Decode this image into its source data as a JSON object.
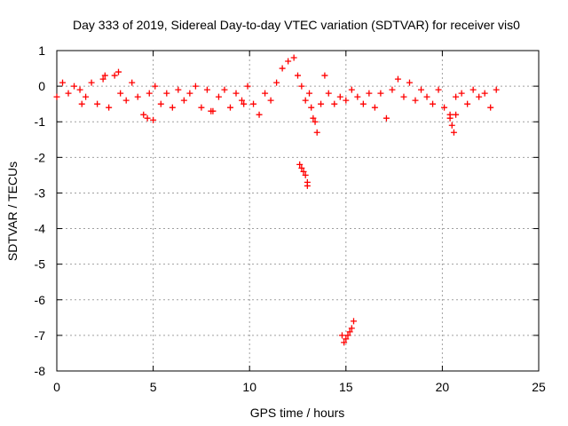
{
  "chart_data": {
    "type": "scatter",
    "title": "Day 333 of 2019, Sidereal Day-to-day VTEC variation (SDTVAR) for receiver vis0",
    "xlabel": "GPS time / hours",
    "ylabel": "SDTVAR / TECUs",
    "xlim": [
      0,
      25
    ],
    "ylim": [
      -8,
      1
    ],
    "xticks": [
      0,
      5,
      10,
      15,
      20,
      25
    ],
    "xtick_labels": [
      "0",
      "5",
      "10",
      "15",
      "20",
      "25"
    ],
    "yticks": [
      1,
      0,
      -1,
      -2,
      -3,
      -4,
      -5,
      -6,
      -7,
      -8
    ],
    "ytick_labels": [
      "1",
      "0",
      "-1",
      "-2",
      "-3",
      "-4",
      "-5",
      "-6",
      "-7",
      "-8"
    ],
    "grid": true,
    "marker": "+",
    "color": "#ff0000",
    "series": [
      {
        "name": "SDTVAR",
        "x": [
          0.0,
          0.3,
          0.6,
          0.9,
          1.2,
          1.5,
          1.8,
          2.1,
          2.4,
          2.7,
          3.0,
          3.3,
          3.6,
          3.9,
          4.2,
          4.5,
          4.8,
          5.1,
          5.4,
          5.7,
          6.0,
          6.3,
          6.6,
          6.9,
          7.2,
          7.5,
          7.8,
          8.1,
          8.4,
          8.7,
          9.0,
          9.3,
          9.6,
          9.9,
          10.2,
          10.5,
          10.8,
          11.1,
          11.4,
          11.7,
          12.0,
          12.3,
          12.5,
          12.7,
          12.9,
          13.1,
          13.3,
          13.5,
          13.7,
          13.9,
          14.1,
          14.4,
          14.7,
          15.0,
          15.3,
          15.6,
          15.9,
          16.2,
          16.5,
          16.8,
          17.1,
          17.4,
          17.7,
          18.0,
          18.3,
          18.6,
          18.9,
          19.2,
          19.5,
          19.8,
          20.1,
          20.4,
          20.7,
          21.0,
          21.3,
          21.6,
          21.9,
          22.2,
          22.5,
          22.8,
          1.3,
          2.5,
          4.7,
          5.0,
          3.2,
          8.0,
          9.7,
          12.6,
          12.7,
          12.8,
          12.9,
          13.0,
          13.0,
          13.2,
          13.4,
          14.8,
          14.9,
          15.0,
          15.1,
          15.2,
          15.3,
          15.4,
          20.4,
          20.5,
          20.6,
          20.7
        ],
        "y": [
          -0.3,
          0.1,
          -0.2,
          0.0,
          -0.1,
          -0.3,
          0.1,
          -0.5,
          0.2,
          -0.6,
          0.3,
          -0.2,
          -0.4,
          0.1,
          -0.3,
          -0.8,
          -0.2,
          0.0,
          -0.5,
          -0.2,
          -0.6,
          -0.1,
          -0.4,
          -0.2,
          0.0,
          -0.6,
          -0.1,
          -0.7,
          -0.3,
          -0.1,
          -0.6,
          -0.2,
          -0.4,
          0.0,
          -0.5,
          -0.8,
          -0.2,
          -0.4,
          0.1,
          0.5,
          0.7,
          0.8,
          0.3,
          0.0,
          -0.4,
          -0.2,
          -0.9,
          -1.3,
          -0.5,
          0.3,
          -0.2,
          -0.5,
          -0.3,
          -0.4,
          -0.1,
          -0.3,
          -0.5,
          -0.2,
          -0.6,
          -0.2,
          -0.9,
          -0.1,
          0.2,
          -0.3,
          0.1,
          -0.4,
          -0.1,
          -0.3,
          -0.5,
          -0.1,
          -0.6,
          -0.8,
          -0.3,
          -0.2,
          -0.5,
          -0.1,
          -0.3,
          -0.2,
          -0.6,
          -0.1,
          -0.5,
          0.3,
          -0.9,
          -0.95,
          0.4,
          -0.7,
          -0.5,
          -2.2,
          -2.3,
          -2.4,
          -2.5,
          -2.7,
          -2.8,
          -0.6,
          -1.0,
          -7.0,
          -7.2,
          -7.1,
          -7.0,
          -6.9,
          -6.8,
          -6.6,
          -0.9,
          -1.1,
          -1.3,
          -0.8
        ]
      }
    ]
  }
}
